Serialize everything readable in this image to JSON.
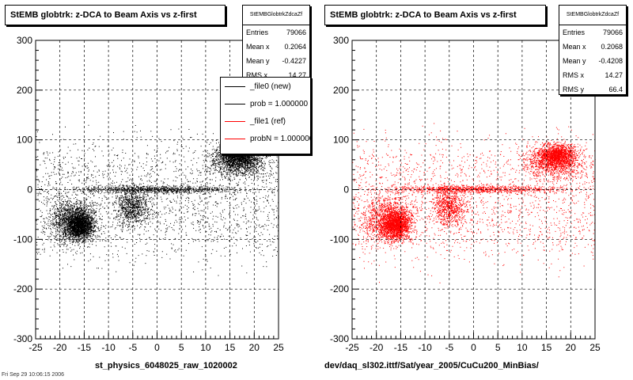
{
  "footer_text": "Fri Sep 29 10:06:15 2006",
  "chart_data": [
    {
      "type": "scatter",
      "title": "StEMB globtrk: z-DCA to Beam Axis vs z-first",
      "xlabel": "st_physics_6048025_raw_1020002",
      "ylabel": "",
      "xlim": [
        -25,
        25
      ],
      "ylim": [
        -300,
        300
      ],
      "x_ticks": [
        -25,
        -20,
        -15,
        -10,
        -5,
        0,
        5,
        10,
        15,
        20,
        25
      ],
      "y_ticks": [
        -300,
        -200,
        -100,
        0,
        100,
        200,
        300
      ],
      "grid": true,
      "marker_color": "#000000",
      "stats": {
        "name": "StEMBGlobtrkZdcaZf",
        "rows": [
          {
            "label": "Entries",
            "value": "79066"
          },
          {
            "label": "Mean x",
            "value": "0.2064"
          },
          {
            "label": "Mean y",
            "value": "-0.4227"
          },
          {
            "label": "RMS x",
            "value": "14.27"
          }
        ]
      },
      "legend": {
        "position": "top-right",
        "entries": [
          {
            "label": "_file0 (new)",
            "color": "#000000"
          },
          {
            "label": "prob = 1.000000",
            "color": "#000000"
          },
          {
            "label": "_file1 (ref)",
            "color": "#ff0000"
          },
          {
            "label": "probN = 1.000000",
            "color": "#ff0000"
          }
        ]
      },
      "clusters": [
        {
          "x": [
            -25,
            -10
          ],
          "y": [
            -130,
            5
          ],
          "w": 9
        },
        {
          "x": [
            -20,
            -12
          ],
          "y": [
            -110,
            -30
          ],
          "w": 10
        },
        {
          "x": [
            -10,
            0
          ],
          "y": [
            -90,
            20
          ],
          "w": 5
        },
        {
          "x": [
            -25,
            25
          ],
          "y": [
            -10,
            12
          ],
          "w": 6
        },
        {
          "x": [
            8,
            25
          ],
          "y": [
            10,
            110
          ],
          "w": 9
        },
        {
          "x": [
            12,
            22
          ],
          "y": [
            40,
            100
          ],
          "w": 6
        },
        {
          "x": [
            -25,
            25
          ],
          "y": [
            -200,
            160
          ],
          "w": 12
        }
      ]
    },
    {
      "type": "scatter",
      "title": "StEMB globtrk: z-DCA to Beam Axis vs z-first",
      "xlabel": "dev/daq_sl302.ittf/Sat/year_2005/CuCu200_MinBias/",
      "ylabel": "",
      "xlim": [
        -25,
        25
      ],
      "ylim": [
        -300,
        300
      ],
      "x_ticks": [
        -25,
        -20,
        -15,
        -10,
        -5,
        0,
        5,
        10,
        15,
        20,
        25
      ],
      "y_ticks": [
        -300,
        -200,
        -100,
        0,
        100,
        200,
        300
      ],
      "grid": true,
      "marker_color": "#ff0000",
      "stats": {
        "name": "StEMBGlobtrkZdcaZf",
        "rows": [
          {
            "label": "Entries",
            "value": "79066"
          },
          {
            "label": "Mean x",
            "value": "0.2068"
          },
          {
            "label": "Mean y",
            "value": "-0.4208"
          },
          {
            "label": "RMS x",
            "value": "14.27"
          },
          {
            "label": "RMS y",
            "value": "66.4"
          }
        ]
      },
      "clusters": [
        {
          "x": [
            -25,
            -10
          ],
          "y": [
            -130,
            5
          ],
          "w": 9
        },
        {
          "x": [
            -20,
            -12
          ],
          "y": [
            -110,
            -30
          ],
          "w": 10
        },
        {
          "x": [
            -10,
            0
          ],
          "y": [
            -90,
            20
          ],
          "w": 5
        },
        {
          "x": [
            -25,
            25
          ],
          "y": [
            -10,
            12
          ],
          "w": 6
        },
        {
          "x": [
            8,
            25
          ],
          "y": [
            10,
            110
          ],
          "w": 9
        },
        {
          "x": [
            12,
            22
          ],
          "y": [
            40,
            100
          ],
          "w": 6
        },
        {
          "x": [
            -25,
            25
          ],
          "y": [
            -200,
            160
          ],
          "w": 12
        }
      ]
    }
  ]
}
